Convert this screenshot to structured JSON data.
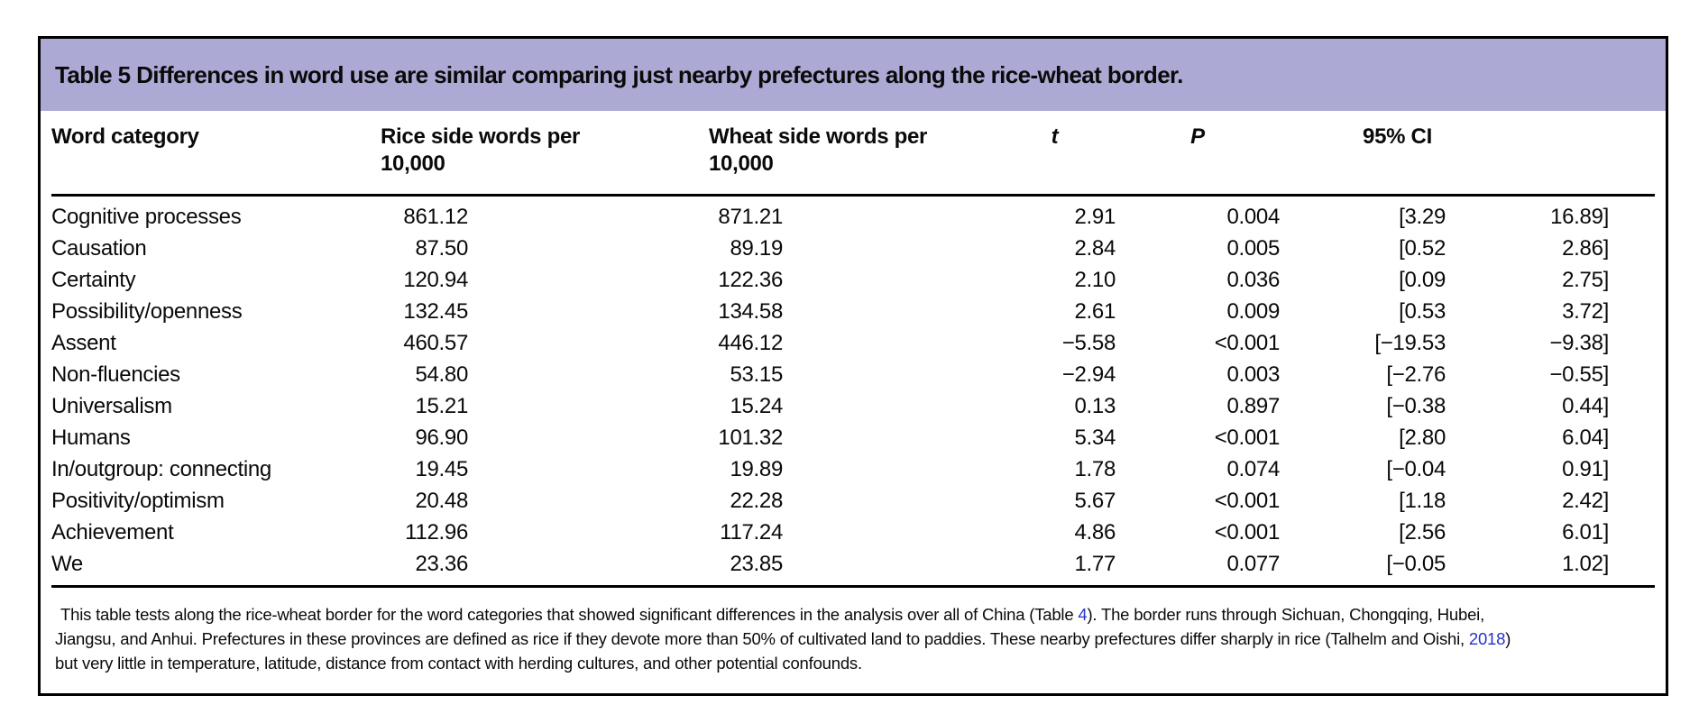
{
  "colors": {
    "title_bg": "#aca9d4",
    "link_blue": "#2533cc",
    "border": "#000000",
    "text": "#0a0a0a"
  },
  "table": {
    "title": "Table 5 Differences in word use are similar comparing just nearby prefectures along the rice-wheat border.",
    "headers": {
      "word_category": "Word category",
      "rice": "Rice side words per 10,000",
      "wheat": "Wheat side words per 10,000",
      "t": "t",
      "p": "P",
      "ci": "95% CI"
    },
    "rows": [
      {
        "category": "Cognitive processes",
        "rice": "861.12",
        "wheat": "871.21",
        "t": "2.91",
        "p": "0.004",
        "ci_low": "[3.29",
        "ci_high": "16.89]"
      },
      {
        "category": "Causation",
        "rice": "87.50",
        "wheat": "89.19",
        "t": "2.84",
        "p": "0.005",
        "ci_low": "[0.52",
        "ci_high": "2.86]"
      },
      {
        "category": "Certainty",
        "rice": "120.94",
        "wheat": "122.36",
        "t": "2.10",
        "p": "0.036",
        "ci_low": "[0.09",
        "ci_high": "2.75]"
      },
      {
        "category": "Possibility/openness",
        "rice": "132.45",
        "wheat": "134.58",
        "t": "2.61",
        "p": "0.009",
        "ci_low": "[0.53",
        "ci_high": "3.72]"
      },
      {
        "category": "Assent",
        "rice": "460.57",
        "wheat": "446.12",
        "t": "−5.58",
        "p": "<0.001",
        "ci_low": "[−19.53",
        "ci_high": "−9.38]"
      },
      {
        "category": "Non-fluencies",
        "rice": "54.80",
        "wheat": "53.15",
        "t": "−2.94",
        "p": "0.003",
        "ci_low": "[−2.76",
        "ci_high": "−0.55]"
      },
      {
        "category": "Universalism",
        "rice": "15.21",
        "wheat": "15.24",
        "t": "0.13",
        "p": "0.897",
        "ci_low": "[−0.38",
        "ci_high": "0.44]"
      },
      {
        "category": "Humans",
        "rice": "96.90",
        "wheat": "101.32",
        "t": "5.34",
        "p": "<0.001",
        "ci_low": "[2.80",
        "ci_high": "6.04]"
      },
      {
        "category": "In/outgroup: connecting",
        "rice": "19.45",
        "wheat": "19.89",
        "t": "1.78",
        "p": "0.074",
        "ci_low": "[−0.04",
        "ci_high": "0.91]"
      },
      {
        "category": "Positivity/optimism",
        "rice": "20.48",
        "wheat": "22.28",
        "t": "5.67",
        "p": "<0.001",
        "ci_low": "[1.18",
        "ci_high": "2.42]"
      },
      {
        "category": "Achievement",
        "rice": "112.96",
        "wheat": "117.24",
        "t": "4.86",
        "p": "<0.001",
        "ci_low": "[2.56",
        "ci_high": "6.01]"
      },
      {
        "category": "We",
        "rice": "23.36",
        "wheat": "23.85",
        "t": "1.77",
        "p": "0.077",
        "ci_low": "[−0.05",
        "ci_high": "1.02]"
      }
    ],
    "footnote_segments": [
      {
        "text": "This table tests along the rice-wheat border for the word categories that showed significant differences in the analysis over all of China (Table ",
        "link": false,
        "newline": false
      },
      {
        "text": "4",
        "link": true,
        "newline": false
      },
      {
        "text": "). The border runs through Sichuan, Chongqing, Hubei,",
        "link": false,
        "newline": false
      },
      {
        "text": "Jiangsu, and Anhui. Prefectures in these provinces are defined as rice if they devote more than 50% of cultivated land to paddies. These nearby prefectures differ sharply in rice (Talhelm and Oishi, ",
        "link": false,
        "newline": true
      },
      {
        "text": "2018",
        "link": true,
        "newline": false
      },
      {
        "text": ")",
        "link": false,
        "newline": false
      },
      {
        "text": "but very little in temperature, latitude, distance from contact with herding cultures, and other potential confounds.",
        "link": false,
        "newline": true
      }
    ]
  }
}
